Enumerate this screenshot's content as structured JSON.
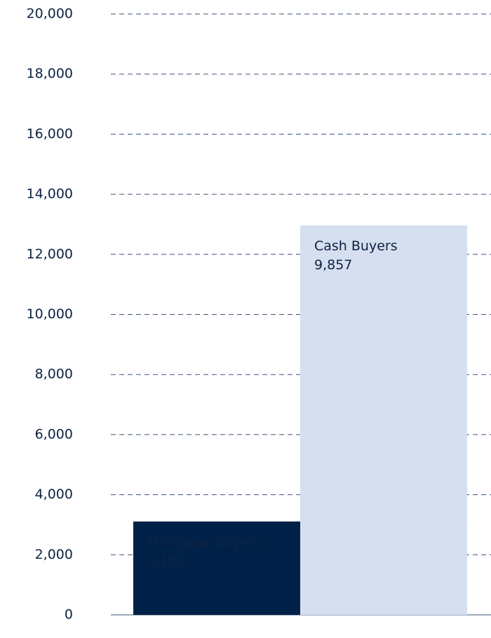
{
  "chart_data": {
    "type": "bar",
    "stacked": true,
    "series": [
      {
        "name": "Mortgage Buyers",
        "color": "#002147",
        "values": [
          3108
        ],
        "value_labels": [
          "3,108"
        ]
      },
      {
        "name": "Cash Buyers",
        "color": "#d6dff0",
        "values": [
          9857
        ],
        "value_labels": [
          "9,857"
        ]
      }
    ],
    "ylim": [
      0,
      20000
    ],
    "yticks": [
      0,
      {
        "value": 2000,
        "label": "2,000"
      },
      {
        "value": 4000,
        "label": "4,000"
      },
      {
        "value": 6000,
        "label": "6,000"
      },
      {
        "value": 8000,
        "label": "8,000"
      },
      {
        "value": 10000,
        "label": "10,000"
      },
      {
        "value": 12000,
        "label": "12,000"
      },
      {
        "value": 14000,
        "label": "14,000"
      },
      {
        "value": 16000,
        "label": "16,000"
      },
      {
        "value": 18000,
        "label": "18,000"
      },
      {
        "value": 20000,
        "label": "20,000"
      }
    ],
    "grid": true
  }
}
